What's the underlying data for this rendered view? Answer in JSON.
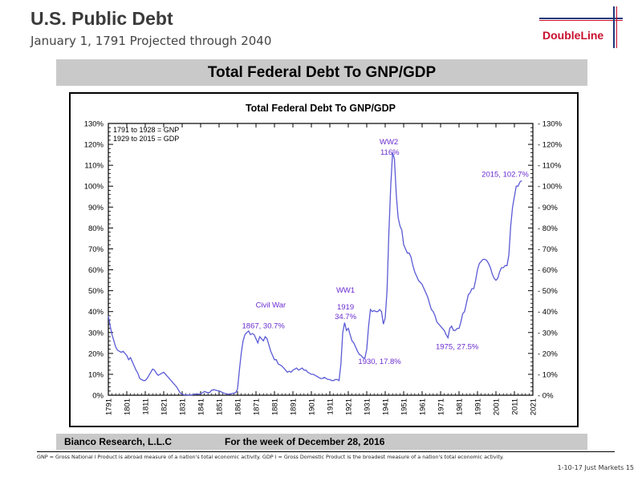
{
  "slide": {
    "title": "U.S. Public Debt",
    "subtitle": "January 1, 1791 Projected through 2040",
    "logo_text": "DoubleLine",
    "banner_title": "Total Federal Debt To GNP/GDP",
    "source": "Bianco Research, L.L.C",
    "week": "For the week of December 28, 2016",
    "footnote": "GNP = Gross National l Product is abroad measure of  a nation's total economic activity. GDP l = Gross Domestic Product is the broadest measure of a nation's total economic activity.",
    "page_label": "1-10-17 Just Markets  15"
  },
  "chart_data": {
    "type": "line",
    "title": "Total Federal Debt To GNP/GDP",
    "xlim": [
      1791,
      2021
    ],
    "ylim": [
      0,
      130
    ],
    "x_ticks": [
      "1791",
      "1801",
      "1811",
      "1821",
      "1831",
      "1841",
      "1851",
      "1861",
      "1871",
      "1881",
      "1891",
      "1901",
      "1911",
      "1921",
      "1931",
      "1941",
      "1951",
      "1961",
      "1971",
      "1981",
      "1991",
      "2001",
      "2011",
      "2021"
    ],
    "y_ticks": [
      "0%",
      "10%",
      "20%",
      "30%",
      "40%",
      "50%",
      "60%",
      "70%",
      "80%",
      "90%",
      "100%",
      "110%",
      "120%",
      "130%"
    ],
    "legend_lines": [
      "1791 to 1928 = GNP",
      "1929 to 2015 = GDP"
    ],
    "legend_position": "top-left",
    "line_color": "#5b5bd6",
    "annotation_color": "#6a2bd0",
    "series": [
      {
        "points": [
          [
            1791,
            38
          ],
          [
            1792,
            33
          ],
          [
            1793,
            29
          ],
          [
            1794,
            26
          ],
          [
            1795,
            23
          ],
          [
            1796,
            21.5
          ],
          [
            1797,
            21
          ],
          [
            1798,
            20.5
          ],
          [
            1799,
            21
          ],
          [
            1800,
            20
          ],
          [
            1801,
            19
          ],
          [
            1802,
            17
          ],
          [
            1803,
            18
          ],
          [
            1804,
            16
          ],
          [
            1805,
            14
          ],
          [
            1806,
            12
          ],
          [
            1807,
            10.5
          ],
          [
            1808,
            8
          ],
          [
            1809,
            7.5
          ],
          [
            1810,
            7
          ],
          [
            1811,
            7
          ],
          [
            1812,
            8
          ],
          [
            1813,
            9.5
          ],
          [
            1814,
            11
          ],
          [
            1815,
            12.5
          ],
          [
            1816,
            12
          ],
          [
            1817,
            10.5
          ],
          [
            1818,
            9.5
          ],
          [
            1819,
            10
          ],
          [
            1820,
            10.5
          ],
          [
            1821,
            11
          ],
          [
            1822,
            10
          ],
          [
            1823,
            9
          ],
          [
            1824,
            8
          ],
          [
            1825,
            7
          ],
          [
            1826,
            6
          ],
          [
            1827,
            5
          ],
          [
            1828,
            4
          ],
          [
            1829,
            2.5
          ],
          [
            1830,
            1
          ],
          [
            1831,
            0.5
          ],
          [
            1832,
            0.2
          ],
          [
            1833,
            0.2
          ],
          [
            1834,
            0.1
          ],
          [
            1835,
            0.1
          ],
          [
            1836,
            0.1
          ],
          [
            1837,
            0.3
          ],
          [
            1838,
            0.6
          ],
          [
            1839,
            0.5
          ],
          [
            1840,
            0.5
          ],
          [
            1841,
            0.8
          ],
          [
            1842,
            1.1
          ],
          [
            1843,
            1.8
          ],
          [
            1844,
            1.5
          ],
          [
            1845,
            1.2
          ],
          [
            1846,
            1.4
          ],
          [
            1847,
            2.4
          ],
          [
            1848,
            2.6
          ],
          [
            1849,
            2.5
          ],
          [
            1850,
            2.2
          ],
          [
            1851,
            2
          ],
          [
            1852,
            1.7
          ],
          [
            1853,
            1.2
          ],
          [
            1854,
            0.9
          ],
          [
            1855,
            0.7
          ],
          [
            1856,
            0.5
          ],
          [
            1857,
            0.5
          ],
          [
            1858,
            0.8
          ],
          [
            1859,
            1
          ],
          [
            1860,
            1.2
          ],
          [
            1861,
            3
          ],
          [
            1862,
            12
          ],
          [
            1863,
            20
          ],
          [
            1864,
            26
          ],
          [
            1865,
            29
          ],
          [
            1866,
            30
          ],
          [
            1867,
            30.7
          ],
          [
            1868,
            29
          ],
          [
            1869,
            29.5
          ],
          [
            1870,
            29
          ],
          [
            1871,
            27
          ],
          [
            1872,
            25
          ],
          [
            1873,
            28
          ],
          [
            1874,
            27
          ],
          [
            1875,
            26
          ],
          [
            1876,
            28
          ],
          [
            1877,
            27
          ],
          [
            1878,
            24
          ],
          [
            1879,
            21
          ],
          [
            1880,
            19
          ],
          [
            1881,
            17
          ],
          [
            1882,
            17
          ],
          [
            1883,
            15
          ],
          [
            1884,
            14.5
          ],
          [
            1885,
            14
          ],
          [
            1886,
            13
          ],
          [
            1887,
            12
          ],
          [
            1888,
            11
          ],
          [
            1889,
            11.5
          ],
          [
            1890,
            11
          ],
          [
            1891,
            12
          ],
          [
            1892,
            12.5
          ],
          [
            1893,
            13
          ],
          [
            1894,
            12
          ],
          [
            1895,
            12.5
          ],
          [
            1896,
            13
          ],
          [
            1897,
            12
          ],
          [
            1898,
            12
          ],
          [
            1899,
            11
          ],
          [
            1900,
            10.5
          ],
          [
            1901,
            10
          ],
          [
            1902,
            10
          ],
          [
            1903,
            9.5
          ],
          [
            1904,
            9
          ],
          [
            1905,
            8.5
          ],
          [
            1906,
            8
          ],
          [
            1907,
            8
          ],
          [
            1908,
            8.5
          ],
          [
            1909,
            8
          ],
          [
            1910,
            7.5
          ],
          [
            1911,
            7.5
          ],
          [
            1912,
            7
          ],
          [
            1913,
            7
          ],
          [
            1914,
            7.5
          ],
          [
            1915,
            7.5
          ],
          [
            1916,
            7
          ],
          [
            1917,
            15
          ],
          [
            1918,
            30
          ],
          [
            1919,
            34.7
          ],
          [
            1920,
            31
          ],
          [
            1921,
            32
          ],
          [
            1922,
            29
          ],
          [
            1923,
            26
          ],
          [
            1924,
            25
          ],
          [
            1925,
            23
          ],
          [
            1926,
            21
          ],
          [
            1927,
            19.5
          ],
          [
            1928,
            19
          ],
          [
            1929,
            17.8
          ],
          [
            1930,
            17.8
          ],
          [
            1931,
            22
          ],
          [
            1932,
            33
          ],
          [
            1933,
            41
          ],
          [
            1934,
            40
          ],
          [
            1935,
            40.5
          ],
          [
            1936,
            40
          ],
          [
            1937,
            40
          ],
          [
            1938,
            41
          ],
          [
            1939,
            40
          ],
          [
            1940,
            34
          ],
          [
            1941,
            37
          ],
          [
            1942,
            50
          ],
          [
            1943,
            78
          ],
          [
            1944,
            100
          ],
          [
            1945,
            116
          ],
          [
            1946,
            113
          ],
          [
            1947,
            96
          ],
          [
            1948,
            85
          ],
          [
            1949,
            81
          ],
          [
            1950,
            79
          ],
          [
            1951,
            72
          ],
          [
            1952,
            70
          ],
          [
            1953,
            68
          ],
          [
            1954,
            68
          ],
          [
            1955,
            66
          ],
          [
            1956,
            62
          ],
          [
            1957,
            59
          ],
          [
            1958,
            57
          ],
          [
            1959,
            55
          ],
          [
            1960,
            54
          ],
          [
            1961,
            53
          ],
          [
            1962,
            51
          ],
          [
            1963,
            49
          ],
          [
            1964,
            47
          ],
          [
            1965,
            44
          ],
          [
            1966,
            41
          ],
          [
            1967,
            40
          ],
          [
            1968,
            38
          ],
          [
            1969,
            35
          ],
          [
            1970,
            34
          ],
          [
            1971,
            33
          ],
          [
            1972,
            32
          ],
          [
            1973,
            31
          ],
          [
            1974,
            29
          ],
          [
            1975,
            27.5
          ],
          [
            1976,
            32
          ],
          [
            1977,
            33
          ],
          [
            1978,
            31
          ],
          [
            1979,
            31
          ],
          [
            1980,
            32
          ],
          [
            1981,
            32
          ],
          [
            1982,
            35
          ],
          [
            1983,
            39
          ],
          [
            1984,
            40
          ],
          [
            1985,
            44
          ],
          [
            1986,
            48
          ],
          [
            1987,
            49
          ],
          [
            1988,
            51
          ],
          [
            1989,
            51
          ],
          [
            1990,
            55
          ],
          [
            1991,
            60
          ],
          [
            1992,
            63
          ],
          [
            1993,
            64
          ],
          [
            1994,
            65
          ],
          [
            1995,
            65
          ],
          [
            1996,
            64.5
          ],
          [
            1997,
            63
          ],
          [
            1998,
            61
          ],
          [
            1999,
            58
          ],
          [
            2000,
            56
          ],
          [
            2001,
            55
          ],
          [
            2002,
            56
          ],
          [
            2003,
            59
          ],
          [
            2004,
            61
          ],
          [
            2005,
            61
          ],
          [
            2006,
            62
          ],
          [
            2007,
            62
          ],
          [
            2008,
            67
          ],
          [
            2009,
            81
          ],
          [
            2010,
            90
          ],
          [
            2011,
            95
          ],
          [
            2012,
            100
          ],
          [
            2013,
            100
          ],
          [
            2014,
            102
          ],
          [
            2015,
            102.7
          ]
        ]
      }
    ],
    "annotations": [
      {
        "text": "WW2",
        "x": 1943,
        "y": 120
      },
      {
        "text": "116%",
        "x": 1943.5,
        "y": 115
      },
      {
        "text": "2015, 102.7%",
        "x": 2006,
        "y": 104.5
      },
      {
        "text": "Civil War",
        "x": 1879,
        "y": 42
      },
      {
        "text": "1867, 30.7%",
        "x": 1875,
        "y": 32
      },
      {
        "text": "WW1",
        "x": 1919.5,
        "y": 49
      },
      {
        "text": "1919",
        "x": 1919.5,
        "y": 41
      },
      {
        "text": "34.7%",
        "x": 1919.5,
        "y": 36.5
      },
      {
        "text": "1930, 17.8%",
        "x": 1938,
        "y": 15
      },
      {
        "text": "1975, 27.5%",
        "x": 1980,
        "y": 22
      }
    ]
  }
}
